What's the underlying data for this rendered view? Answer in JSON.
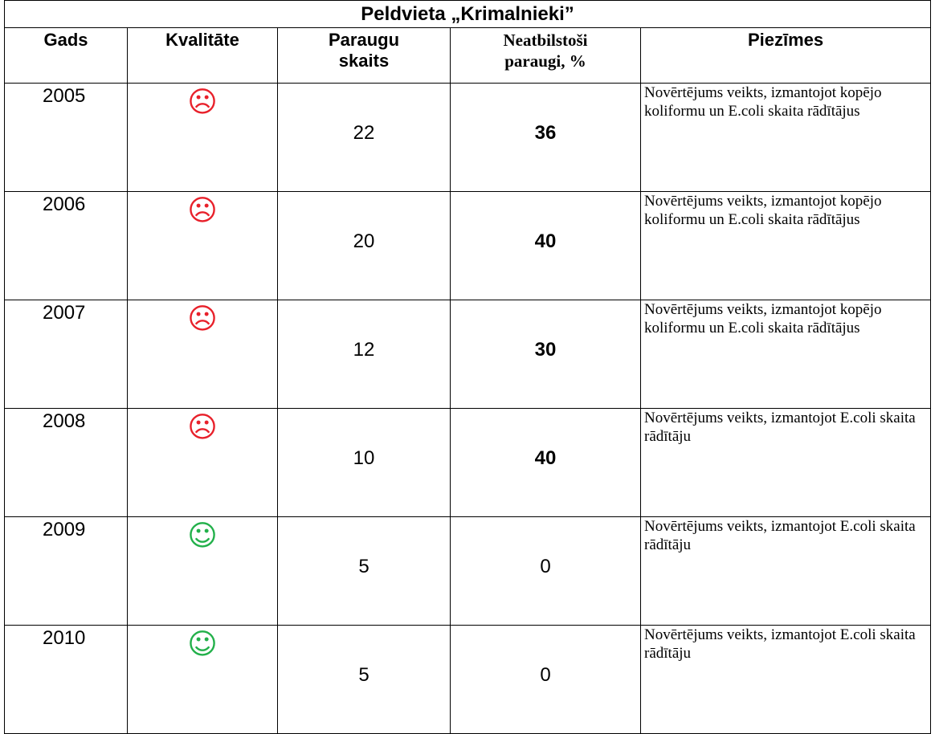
{
  "title": "Peldvieta „Krimalnieki”",
  "table": {
    "headers": [
      "Gads",
      "Kvalitāte",
      "Paraugu skaits",
      "Neatbilstoši paraugi, %",
      "Piezīmes"
    ],
    "rows": [
      {
        "year": 2005,
        "quality": "☹",
        "color": "#e8202a",
        "samples": 22,
        "noncompliant": 36,
        "emphasis": true,
        "note": "Novērtējums veikts, izmantojot kopējo koliformu un E.coli skaita rādītājus"
      },
      {
        "year": 2006,
        "quality": "☹",
        "color": "#e8202a",
        "samples": 20,
        "noncompliant": 40,
        "emphasis": true,
        "note": "Novērtējums veikts, izmantojot kopējo koliformu un E.coli skaita rādītājus"
      },
      {
        "year": 2007,
        "quality": "☹",
        "color": "#e8202a",
        "samples": 12,
        "noncompliant": 30,
        "emphasis": true,
        "note": "Novērtējums veikts, izmantojot kopējo koliformu un E.coli skaita rādītājus"
      },
      {
        "year": 2008,
        "quality": "☹",
        "color": "#e8202a",
        "samples": 10,
        "noncompliant": 40,
        "emphasis": true,
        "note": "Novērtējums veikts, izmantojot E.coli skaita rādītāju"
      },
      {
        "year": 2009,
        "quality": "☺",
        "color": "#22b04a",
        "samples": 5,
        "noncompliant": 0,
        "emphasis": false,
        "note": "Novērtējums veikts, izmantojot E.coli skaita rādītāju"
      },
      {
        "year": 2010,
        "quality": "☺",
        "color": "#22b04a",
        "samples": 5,
        "noncompliant": 0,
        "emphasis": false,
        "note": "Novērtējums veikts, izmantojot E.coli skaita rādītāju"
      }
    ]
  }
}
